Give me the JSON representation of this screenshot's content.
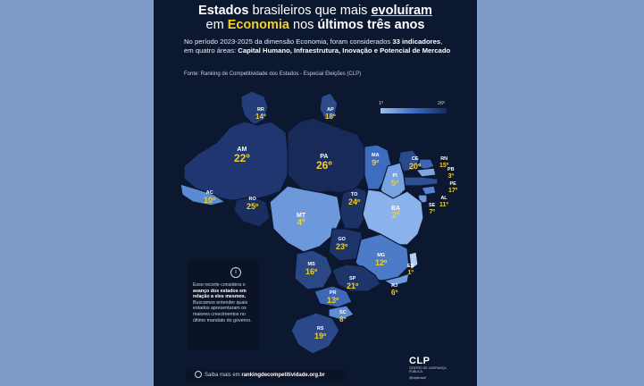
{
  "title": {
    "l1_a": "Estados ",
    "l1_b": "brasileiros que mais ",
    "l1_c": "evoluíram",
    "l2_a": "em ",
    "l2_b": "Economia",
    "l2_c": " nos ",
    "l2_d": "últimos três anos"
  },
  "description": {
    "p1": "No período 2023-2025 da dimensão Economia, foram considerados ",
    "p2": "33 indicadores",
    "p3": ", em quatro áreas: ",
    "p4": "Capital Humano, Infraestrutura, Inovação e Potencial de Mercado"
  },
  "source": "Fonte: Ranking de Competitividade dos Estados - Especial Eleições (CLP)",
  "legend": {
    "min": "1º",
    "max": "26º",
    "colors": [
      "#9fbfe9",
      "#3a6ec6",
      "#182b5a"
    ]
  },
  "states": [
    {
      "abbr": "RR",
      "rank": "14º"
    },
    {
      "abbr": "AP",
      "rank": "18º"
    },
    {
      "abbr": "AM",
      "rank": "22º"
    },
    {
      "abbr": "PA",
      "rank": "26º"
    },
    {
      "abbr": "MA",
      "rank": "9º"
    },
    {
      "abbr": "CE",
      "rank": "20º"
    },
    {
      "abbr": "RN",
      "rank": "15º"
    },
    {
      "abbr": "PB",
      "rank": "3º"
    },
    {
      "abbr": "PE",
      "rank": "17º"
    },
    {
      "abbr": "AL",
      "rank": "11º"
    },
    {
      "abbr": "SE",
      "rank": "7º"
    },
    {
      "abbr": "PI",
      "rank": "5º"
    },
    {
      "abbr": "AC",
      "rank": "10º"
    },
    {
      "abbr": "RO",
      "rank": "25º"
    },
    {
      "abbr": "TO",
      "rank": "24º"
    },
    {
      "abbr": "BA",
      "rank": "2º"
    },
    {
      "abbr": "MT",
      "rank": "4º"
    },
    {
      "abbr": "GO",
      "rank": "23º"
    },
    {
      "abbr": "MG",
      "rank": "12º"
    },
    {
      "abbr": "MS",
      "rank": "16º"
    },
    {
      "abbr": "ES",
      "rank": "1º"
    },
    {
      "abbr": "RJ",
      "rank": "6º"
    },
    {
      "abbr": "SP",
      "rank": "21º"
    },
    {
      "abbr": "PR",
      "rank": "13º"
    },
    {
      "abbr": "SC",
      "rank": "8º"
    },
    {
      "abbr": "RS",
      "rank": "19º"
    }
  ],
  "info_box": {
    "icon": "info-icon",
    "p1": "Esse recorte considera o ",
    "p2": "avanço dos estados em relação a eles mesmos.",
    "p3": " Buscamos entender quais estados apresentaram os maiores crescimentos no último mandato do governo."
  },
  "logo": {
    "name": "CLP",
    "subtitle": "CENTRO DE LIDERANÇA PÚBLICA",
    "handle": "@clpbrasil"
  },
  "footer": {
    "icon": "globe-icon",
    "prefix": "Saiba mais em ",
    "link": "rankingdecompetitividade.org.br"
  }
}
